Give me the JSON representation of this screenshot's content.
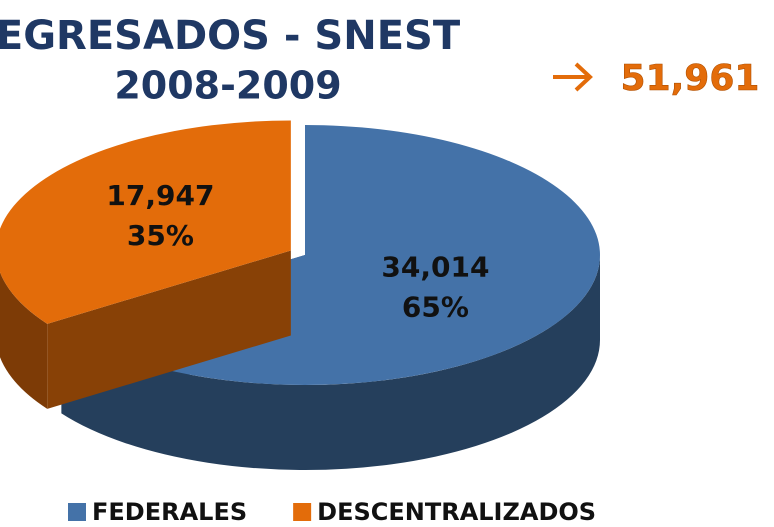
{
  "chart_data": {
    "type": "pie3d",
    "title": "EGRESADOS - SNEST",
    "subtitle": "2008-2009",
    "total_label": "51,961",
    "categories": [
      "FEDERALES",
      "DESCENTRALIZADOS"
    ],
    "values": [
      34014,
      17947
    ],
    "value_labels": [
      "34,014",
      "17,947"
    ],
    "percent_labels": [
      "65%",
      "35%"
    ],
    "colors": [
      "#4472a8",
      "#e36c0a"
    ],
    "exploded": [
      false,
      true
    ],
    "legend": "bottom"
  }
}
